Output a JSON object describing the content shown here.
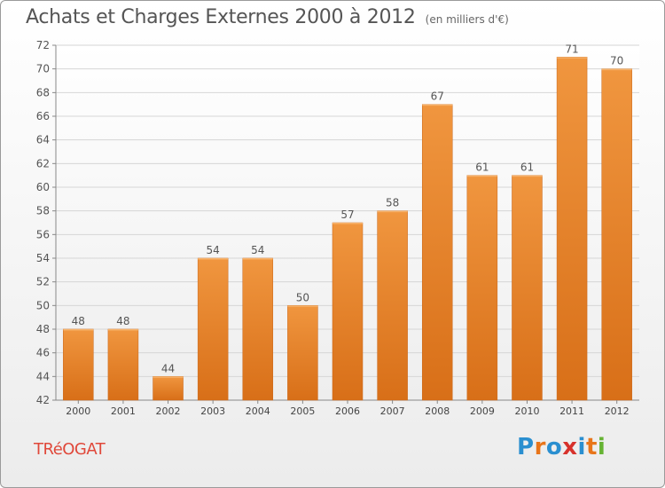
{
  "chart_data": {
    "type": "bar",
    "title": "Achats et Charges Externes 2000 à 2012",
    "subtitle": "(en milliers d'€)",
    "categories": [
      "2000",
      "2001",
      "2002",
      "2003",
      "2004",
      "2005",
      "2006",
      "2007",
      "2008",
      "2009",
      "2010",
      "2011",
      "2012"
    ],
    "values": [
      48,
      48,
      44,
      54,
      54,
      50,
      57,
      58,
      67,
      61,
      61,
      71,
      70
    ],
    "ylim": [
      42,
      72
    ],
    "yticks": [
      "42",
      "44",
      "46",
      "48",
      "50",
      "52",
      "54",
      "56",
      "58",
      "60",
      "62",
      "64",
      "66",
      "68",
      "70",
      "72"
    ],
    "xlabel": "",
    "ylabel": "",
    "grid": true,
    "bar_color": "#f0963f",
    "bar_color_dark": "#d86f18"
  },
  "footer": {
    "town": "TRéOGAT",
    "town_color": "#e0483a",
    "logo_text": "Proxiti",
    "logo_colors": [
      "#2a8fd0",
      "#e8751a",
      "#2a8fd0",
      "#d7322c",
      "#2a8fd0",
      "#e8751a",
      "#66b333"
    ]
  }
}
